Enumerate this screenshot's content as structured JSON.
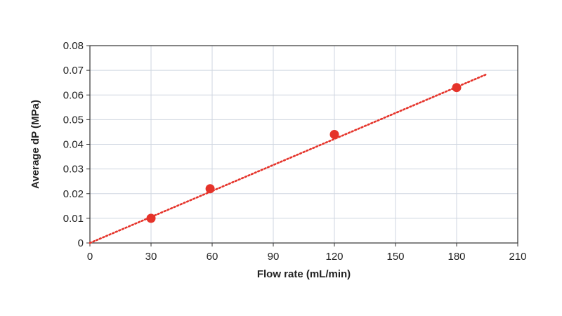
{
  "chart_data": {
    "type": "scatter",
    "title": "",
    "xlabel": "Flow rate (mL/min)",
    "ylabel": "Average dP (MPa)",
    "xlim": [
      0,
      210
    ],
    "ylim": [
      0,
      0.08
    ],
    "x_ticks": [
      0,
      30,
      60,
      90,
      120,
      150,
      180,
      210
    ],
    "y_ticks": [
      0,
      0.01,
      0.02,
      0.03,
      0.04,
      0.05,
      0.06,
      0.07,
      0.08
    ],
    "x_tick_labels": [
      "0",
      "30",
      "60",
      "90",
      "120",
      "150",
      "180",
      "210"
    ],
    "y_tick_labels": [
      "0",
      "0.01",
      "0.02",
      "0.03",
      "0.04",
      "0.05",
      "0.06",
      "0.07",
      "0.08"
    ],
    "grid": true,
    "series": [
      {
        "name": "Average dP",
        "x": [
          30,
          59,
          120,
          180
        ],
        "y": [
          0.01,
          0.022,
          0.044,
          0.063
        ]
      }
    ],
    "trendline": {
      "style": "dotted",
      "x": [
        0,
        195
      ],
      "y": [
        0,
        0.0685
      ]
    },
    "colors": {
      "marker": "#e5332a",
      "trendline": "#e5332a",
      "grid": "#cfd6e0",
      "axis": "#333333"
    }
  }
}
